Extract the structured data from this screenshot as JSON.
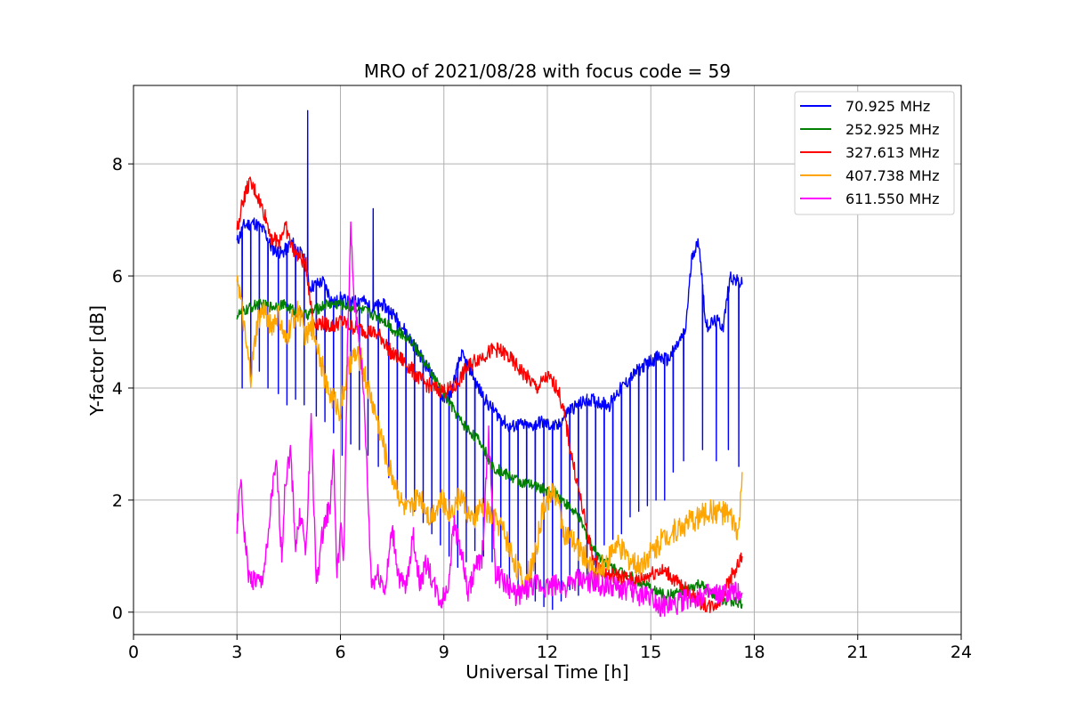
{
  "chart_data": {
    "type": "line",
    "title": "MRO of 2021/08/28 with focus code = 59",
    "xlabel": "Universal Time [h]",
    "ylabel": "Y-factor [dB]",
    "xlim": [
      0,
      24
    ],
    "ylim": [
      -0.4,
      9.4
    ],
    "xticks": [
      0,
      3,
      6,
      9,
      12,
      15,
      18,
      21,
      24
    ],
    "yticks": [
      0,
      2,
      4,
      6,
      8
    ],
    "grid": true,
    "legend_position": "top-right",
    "series": [
      {
        "name": "70.925 MHz",
        "legend_label": "  70.925 MHz",
        "color": "#0000ff",
        "x": [
          3.0,
          3.2,
          3.5,
          3.8,
          4.0,
          4.3,
          4.6,
          4.9,
          5.0,
          5.1,
          5.3,
          5.5,
          5.8,
          6.0,
          6.3,
          6.6,
          6.9,
          7.2,
          7.5,
          7.8,
          8.0,
          8.3,
          8.6,
          8.9,
          9.0,
          9.2,
          9.5,
          9.8,
          10.0,
          10.3,
          10.6,
          10.9,
          11.2,
          11.5,
          11.8,
          12.0,
          12.3,
          12.6,
          12.9,
          13.2,
          13.5,
          13.8,
          14.0,
          14.3,
          14.6,
          14.9,
          15.2,
          15.5,
          15.8,
          16.0,
          16.2,
          16.4,
          16.6,
          16.9,
          17.1,
          17.3,
          17.5,
          17.65
        ],
        "y": [
          6.6,
          6.9,
          6.95,
          6.8,
          6.5,
          6.4,
          6.6,
          6.35,
          6.2,
          5.8,
          5.85,
          5.9,
          5.5,
          5.6,
          5.5,
          5.6,
          5.4,
          5.5,
          5.35,
          5.1,
          4.9,
          4.6,
          4.3,
          3.9,
          3.8,
          3.9,
          4.6,
          4.3,
          4.0,
          3.7,
          3.5,
          3.3,
          3.35,
          3.3,
          3.4,
          3.35,
          3.3,
          3.6,
          3.7,
          3.8,
          3.75,
          3.7,
          3.9,
          4.1,
          4.3,
          4.45,
          4.55,
          4.5,
          4.8,
          5.0,
          6.4,
          6.6,
          5.1,
          5.2,
          5.1,
          6.0,
          5.9,
          5.85
        ],
        "spikes": [
          {
            "x": 3.15,
            "y": 4.0
          },
          {
            "x": 3.4,
            "y": 4.1
          },
          {
            "x": 3.65,
            "y": 4.3
          },
          {
            "x": 3.9,
            "y": 4.0
          },
          {
            "x": 4.2,
            "y": 3.9
          },
          {
            "x": 4.45,
            "y": 3.7
          },
          {
            "x": 4.7,
            "y": 3.8
          },
          {
            "x": 4.95,
            "y": 3.7
          },
          {
            "x": 5.05,
            "y": 8.95
          },
          {
            "x": 5.3,
            "y": 3.5
          },
          {
            "x": 5.55,
            "y": 3.4
          },
          {
            "x": 5.8,
            "y": 3.2
          },
          {
            "x": 6.05,
            "y": 2.8
          },
          {
            "x": 6.3,
            "y": 3.0
          },
          {
            "x": 6.55,
            "y": 2.9
          },
          {
            "x": 6.8,
            "y": 2.8
          },
          {
            "x": 6.95,
            "y": 7.2
          },
          {
            "x": 7.1,
            "y": 2.6
          },
          {
            "x": 7.4,
            "y": 2.4
          },
          {
            "x": 7.65,
            "y": 2.2
          },
          {
            "x": 7.9,
            "y": 2.0
          },
          {
            "x": 8.15,
            "y": 1.8
          },
          {
            "x": 8.4,
            "y": 1.6
          },
          {
            "x": 8.65,
            "y": 1.4
          },
          {
            "x": 8.9,
            "y": 1.2
          },
          {
            "x": 9.15,
            "y": 1.0
          },
          {
            "x": 9.4,
            "y": 0.8
          },
          {
            "x": 9.65,
            "y": 0.9
          },
          {
            "x": 9.9,
            "y": 1.1
          },
          {
            "x": 10.15,
            "y": 1.0
          },
          {
            "x": 10.4,
            "y": 0.9
          },
          {
            "x": 10.65,
            "y": 0.8
          },
          {
            "x": 10.9,
            "y": 0.6
          },
          {
            "x": 11.15,
            "y": 0.4
          },
          {
            "x": 11.4,
            "y": 0.3
          },
          {
            "x": 11.65,
            "y": 0.2
          },
          {
            "x": 11.9,
            "y": 0.1
          },
          {
            "x": 12.15,
            "y": 0.05
          },
          {
            "x": 12.4,
            "y": 0.2
          },
          {
            "x": 12.65,
            "y": 0.4
          },
          {
            "x": 12.9,
            "y": 0.3
          },
          {
            "x": 13.15,
            "y": 0.6
          },
          {
            "x": 13.4,
            "y": 0.4
          },
          {
            "x": 13.65,
            "y": 1.2
          },
          {
            "x": 13.9,
            "y": 1.3
          },
          {
            "x": 14.15,
            "y": 1.4
          },
          {
            "x": 14.4,
            "y": 1.7
          },
          {
            "x": 14.65,
            "y": 1.8
          },
          {
            "x": 14.9,
            "y": 1.9
          },
          {
            "x": 15.15,
            "y": 2.0
          },
          {
            "x": 15.4,
            "y": 2.0
          },
          {
            "x": 15.65,
            "y": 2.5
          },
          {
            "x": 15.95,
            "y": 2.7
          },
          {
            "x": 16.5,
            "y": 2.9
          },
          {
            "x": 16.9,
            "y": 2.7
          },
          {
            "x": 17.25,
            "y": 2.9
          },
          {
            "x": 17.55,
            "y": 2.6
          }
        ]
      },
      {
        "name": "252.925 MHz",
        "legend_label": "252.925 MHz",
        "color": "#008000",
        "x": [
          3.0,
          3.3,
          3.6,
          4.0,
          4.3,
          4.6,
          5.0,
          5.3,
          5.6,
          6.0,
          6.3,
          6.6,
          7.0,
          7.3,
          7.6,
          8.0,
          8.3,
          8.6,
          8.9,
          9.2,
          9.5,
          9.8,
          10.1,
          10.4,
          10.7,
          11.0,
          11.3,
          11.6,
          11.9,
          12.0,
          12.3,
          12.6,
          12.9,
          13.2,
          13.5,
          13.8,
          14.0,
          14.3,
          14.6,
          14.9,
          15.2,
          15.5,
          15.8,
          16.1,
          16.4,
          16.7,
          17.0,
          17.3,
          17.65
        ],
        "y": [
          5.3,
          5.4,
          5.5,
          5.45,
          5.5,
          5.4,
          5.3,
          5.4,
          5.5,
          5.5,
          5.45,
          5.4,
          5.3,
          5.2,
          5.0,
          4.9,
          4.6,
          4.3,
          4.0,
          3.7,
          3.4,
          3.2,
          3.0,
          2.6,
          2.5,
          2.4,
          2.3,
          2.25,
          2.2,
          2.15,
          2.1,
          1.9,
          1.7,
          1.3,
          1.0,
          0.85,
          0.75,
          0.7,
          0.55,
          0.45,
          0.35,
          0.3,
          0.35,
          0.4,
          0.5,
          0.35,
          0.25,
          0.2,
          0.15
        ],
        "spikes": []
      },
      {
        "name": "327.613 MHz",
        "legend_label": "327.613 MHz",
        "color": "#ff0000",
        "x": [
          3.0,
          3.15,
          3.35,
          3.55,
          3.8,
          4.0,
          4.2,
          4.4,
          4.6,
          4.85,
          5.0,
          5.2,
          5.5,
          5.8,
          6.0,
          6.3,
          6.6,
          6.9,
          7.2,
          7.5,
          7.8,
          8.1,
          8.4,
          8.7,
          9.0,
          9.3,
          9.6,
          9.9,
          10.2,
          10.5,
          10.8,
          11.1,
          11.4,
          11.7,
          12.0,
          12.3,
          12.5,
          12.7,
          12.9,
          13.1,
          13.3,
          13.5,
          13.8,
          14.0,
          14.3,
          14.6,
          14.9,
          15.2,
          15.5,
          15.8,
          16.1,
          16.4,
          16.7,
          17.0,
          17.3,
          17.5,
          17.65
        ],
        "y": [
          6.8,
          7.3,
          7.65,
          7.5,
          7.1,
          6.7,
          6.6,
          6.9,
          6.5,
          6.3,
          6.2,
          5.2,
          5.15,
          5.1,
          5.2,
          5.1,
          5.05,
          5.0,
          4.9,
          4.6,
          4.5,
          4.3,
          4.1,
          4.0,
          3.95,
          4.0,
          4.3,
          4.5,
          4.6,
          4.7,
          4.6,
          4.4,
          4.2,
          4.0,
          4.2,
          4.0,
          3.5,
          2.8,
          2.2,
          1.6,
          1.0,
          0.8,
          0.65,
          0.65,
          0.6,
          0.55,
          0.65,
          0.75,
          0.7,
          0.5,
          0.35,
          0.2,
          0.1,
          0.2,
          0.6,
          0.8,
          1.0
        ],
        "spikes": []
      },
      {
        "name": "407.738 MHz",
        "legend_label": "407.738 MHz",
        "color": "#ffa500",
        "x": [
          3.0,
          3.1,
          3.25,
          3.4,
          3.6,
          3.8,
          4.0,
          4.2,
          4.4,
          4.6,
          4.8,
          5.0,
          5.2,
          5.4,
          5.6,
          5.8,
          6.0,
          6.2,
          6.4,
          6.6,
          6.8,
          7.0,
          7.2,
          7.4,
          7.6,
          7.8,
          8.0,
          8.3,
          8.6,
          8.9,
          9.2,
          9.5,
          9.8,
          10.1,
          10.4,
          10.7,
          11.0,
          11.3,
          11.6,
          11.9,
          12.2,
          12.5,
          12.8,
          13.1,
          13.4,
          13.7,
          14.0,
          14.3,
          14.6,
          14.9,
          15.2,
          15.5,
          15.8,
          16.1,
          16.4,
          16.7,
          17.0,
          17.3,
          17.55,
          17.65
        ],
        "y": [
          6.1,
          5.6,
          4.8,
          4.2,
          5.2,
          5.4,
          5.1,
          5.3,
          4.8,
          5.2,
          5.4,
          4.9,
          5.1,
          4.6,
          4.0,
          3.8,
          3.6,
          4.3,
          4.6,
          4.5,
          4.0,
          3.6,
          3.1,
          2.6,
          2.3,
          1.9,
          1.8,
          2.1,
          1.7,
          2.0,
          1.8,
          2.1,
          1.6,
          1.9,
          1.7,
          1.5,
          1.0,
          0.5,
          0.9,
          1.9,
          2.2,
          1.4,
          1.2,
          1.0,
          0.6,
          0.9,
          1.2,
          1.0,
          0.8,
          1.0,
          1.2,
          1.4,
          1.5,
          1.6,
          1.7,
          1.8,
          1.8,
          1.7,
          1.4,
          2.5
        ],
        "spikes": []
      },
      {
        "name": "611.550 MHz",
        "legend_label": "611.550 MHz",
        "color": "#ff00ff",
        "x": [
          3.0,
          3.1,
          3.2,
          3.35,
          3.5,
          3.7,
          3.9,
          4.0,
          4.15,
          4.3,
          4.4,
          4.55,
          4.7,
          4.85,
          5.0,
          5.15,
          5.3,
          5.5,
          5.7,
          5.8,
          5.9,
          6.0,
          6.1,
          6.2,
          6.3,
          6.4,
          6.55,
          6.7,
          6.9,
          7.1,
          7.3,
          7.5,
          7.7,
          7.9,
          8.1,
          8.3,
          8.5,
          8.7,
          8.9,
          9.1,
          9.3,
          9.5,
          9.7,
          9.9,
          10.1,
          10.3,
          10.5,
          10.8,
          11.1,
          11.4,
          11.7,
          12.0,
          12.3,
          12.6,
          12.9,
          13.2,
          13.5,
          13.8,
          14.1,
          14.4,
          14.7,
          15.0,
          15.3,
          15.6,
          15.9,
          16.2,
          16.5,
          16.8,
          17.1,
          17.4,
          17.65
        ],
        "y": [
          1.4,
          2.4,
          1.5,
          0.6,
          0.6,
          0.5,
          1.2,
          2.1,
          2.6,
          1.0,
          2.3,
          2.9,
          1.2,
          1.8,
          1.0,
          3.5,
          0.5,
          1.5,
          1.9,
          2.9,
          0.6,
          1.5,
          1.0,
          4.6,
          6.8,
          5.5,
          4.9,
          3.6,
          0.5,
          0.7,
          0.4,
          1.5,
          0.6,
          0.4,
          1.4,
          0.5,
          0.9,
          0.5,
          0.2,
          0.4,
          1.6,
          1.1,
          0.3,
          0.8,
          0.9,
          3.2,
          0.7,
          0.5,
          0.3,
          0.4,
          0.5,
          0.45,
          0.5,
          0.45,
          0.6,
          0.55,
          0.5,
          0.45,
          0.4,
          0.4,
          0.3,
          0.3,
          0.1,
          0.1,
          0.2,
          0.25,
          0.3,
          0.3,
          0.3,
          0.35,
          0.35
        ],
        "spikes": []
      }
    ]
  }
}
